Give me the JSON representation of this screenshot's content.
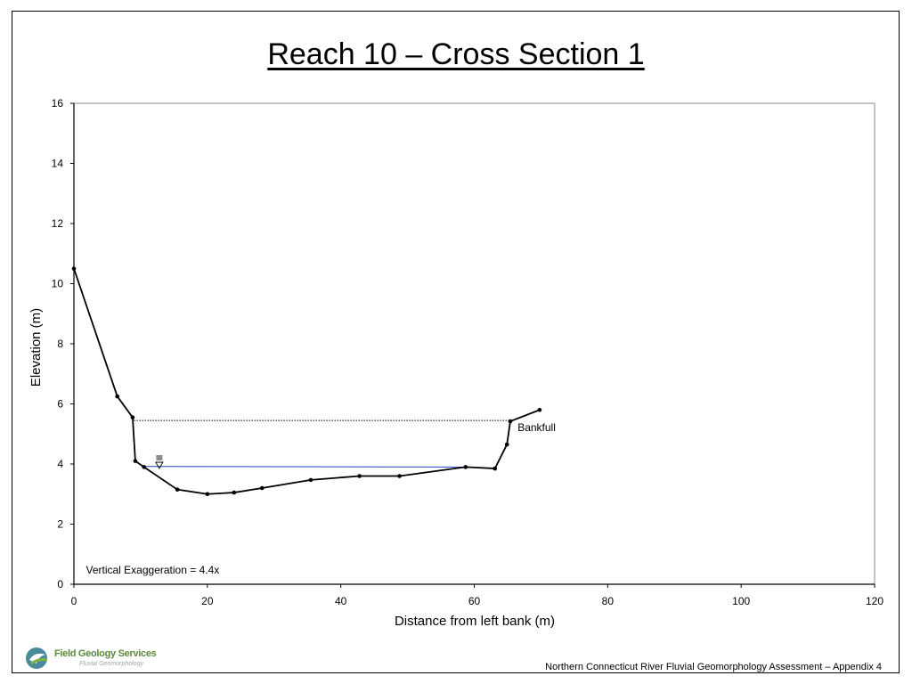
{
  "slide": {
    "title": "Reach 10 – Cross Section 1",
    "footer": "Northern Connecticut River Fluvial Geomorphology Assessment – Appendix 4",
    "logo": {
      "name": "Field Geology Services",
      "tagline": "Fluvial Geomorphology",
      "icon": "field-geology-services-logo"
    }
  },
  "chart_data": {
    "type": "line",
    "title": "",
    "xlabel": "Distance from left bank (m)",
    "ylabel": "Elevation (m)",
    "xlim": [
      0,
      120
    ],
    "ylim": [
      0,
      16
    ],
    "xticks": [
      0,
      20,
      40,
      60,
      80,
      100,
      120
    ],
    "yticks": [
      0,
      2,
      4,
      6,
      8,
      10,
      12,
      14,
      16
    ],
    "grid": false,
    "series": [
      {
        "color": "#000000",
        "markers": true,
        "x": [
          0,
          6.5,
          8.8,
          9.2,
          10.5,
          15.5,
          20,
          24,
          28.2,
          35.5,
          42.8,
          48.8,
          58.7,
          63.1,
          64.9,
          65.4,
          69.8
        ],
        "y": [
          10.5,
          6.25,
          5.55,
          4.1,
          3.9,
          3.15,
          3.0,
          3.05,
          3.2,
          3.47,
          3.6,
          3.6,
          3.9,
          3.85,
          4.65,
          5.42,
          5.8
        ]
      }
    ],
    "lines": [
      {
        "kind": "bankfull",
        "style": "dotted",
        "color": "#000000",
        "x": [
          9.0,
          65.4
        ],
        "y": [
          5.45,
          5.45
        ]
      },
      {
        "kind": "water-surface",
        "style": "solid",
        "color": "#1f3fbf",
        "x": [
          10.5,
          58.7
        ],
        "y": [
          3.92,
          3.9
        ]
      }
    ],
    "annotations": [
      {
        "text": "Bankfull",
        "x": 66.5,
        "y": 5.1
      },
      {
        "text": "Vertical Exaggeration = 4.4x",
        "x": 1.8,
        "y": 0.35
      }
    ],
    "water_symbol": {
      "icon": "water-level-symbol",
      "x": 12.8,
      "y": 4.0
    }
  }
}
